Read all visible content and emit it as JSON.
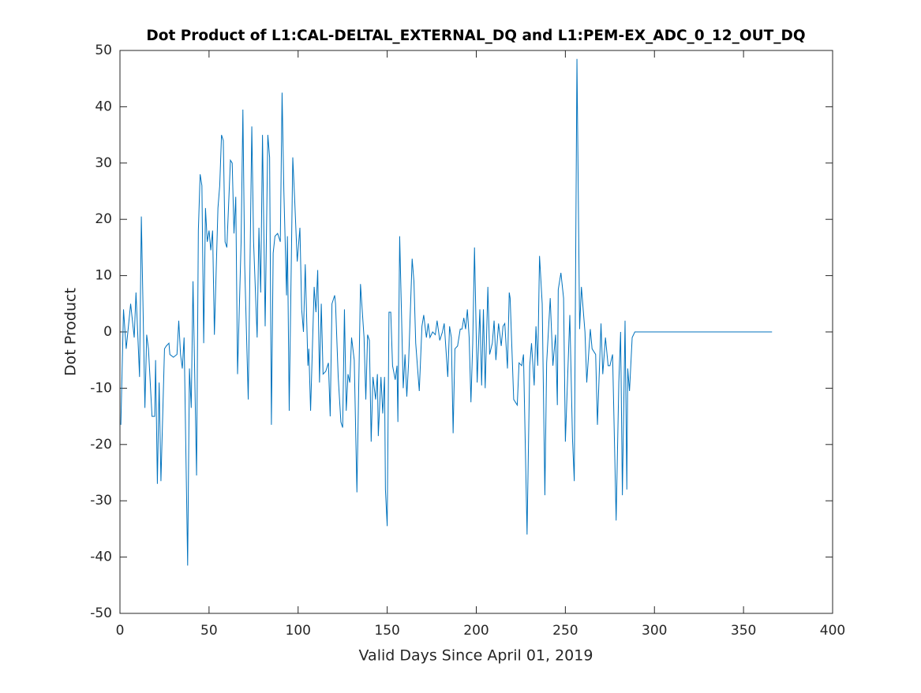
{
  "chart_data": {
    "type": "line",
    "title": "Dot Product of L1:CAL-DELTAL_EXTERNAL_DQ and L1:PEM-EX_ADC_0_12_OUT_DQ",
    "x_label": "Valid Days Since April 01, 2019",
    "y_label": "Dot Product",
    "xlim": [
      0,
      400
    ],
    "xticks": [
      0,
      50,
      100,
      150,
      200,
      250,
      300,
      350,
      400
    ],
    "ylim": [
      -50,
      50
    ],
    "yticks": [
      -50,
      -40,
      -30,
      -20,
      -10,
      0,
      10,
      20,
      30,
      40,
      50
    ],
    "grid": false,
    "series": [
      {
        "color": "#0072bd",
        "x": [
          0.5,
          2,
          3.5,
          6,
          8,
          9,
          11,
          12,
          14,
          15,
          16,
          18,
          19.5,
          20,
          21,
          22,
          23,
          25,
          26,
          27.5,
          28,
          30,
          32,
          33,
          34,
          35,
          36,
          38,
          39,
          40,
          41,
          43,
          44,
          45,
          46,
          47,
          48,
          49,
          50,
          51,
          52,
          53,
          55,
          56,
          57,
          58,
          59,
          60,
          62,
          63,
          64,
          65,
          66,
          68,
          69,
          70,
          72,
          74,
          75,
          77,
          78,
          79,
          80,
          81.5,
          83,
          84,
          85,
          86,
          87,
          88.5,
          90,
          91,
          92,
          93.5,
          94,
          95,
          97,
          98,
          99.5,
          101,
          102,
          103,
          104,
          105.5,
          106,
          107,
          109,
          110,
          111,
          112,
          113,
          114,
          115.5,
          117,
          118,
          119,
          120.5,
          121,
          122.5,
          124,
          125,
          126,
          127,
          128,
          129,
          130,
          131.5,
          133,
          135,
          137,
          138,
          139,
          140,
          141,
          142,
          143.5,
          144.5,
          145,
          146.5,
          147.5,
          148.5,
          149,
          150,
          151,
          152,
          153,
          154.5,
          155.5,
          156,
          157,
          159,
          160,
          161,
          162,
          164,
          165,
          166,
          168,
          169.5,
          170.5,
          172,
          173,
          174,
          175.5,
          177,
          178,
          179.5,
          181,
          182,
          184,
          185,
          186,
          187,
          188,
          189.5,
          191,
          192,
          193,
          194,
          195,
          196,
          197,
          198,
          199,
          200.5,
          202,
          203,
          204,
          205,
          206.5,
          207.5,
          209,
          210,
          211,
          212.5,
          214,
          215,
          216,
          217.5,
          218.5,
          219,
          221,
          223,
          224,
          225.5,
          226.5,
          228.5,
          230,
          231,
          232.5,
          233.5,
          234.5,
          235.5,
          237,
          238.5,
          239.5,
          241.5,
          243,
          244.5,
          245.5,
          246,
          247.5,
          249,
          250,
          252.5,
          254,
          255,
          256.5,
          258,
          259,
          261,
          262,
          264,
          265,
          267,
          268,
          270,
          271,
          272.5,
          274,
          275,
          276.5,
          278.5,
          280,
          281,
          282,
          283.5,
          284.5,
          285,
          286,
          287.5,
          289,
          366
        ],
        "values": [
          -16.5,
          4,
          -3,
          5,
          -1,
          7,
          -8,
          20.5,
          -13.5,
          -0.5,
          -3,
          -15,
          -15,
          -5,
          -27,
          -9,
          -26.5,
          -3,
          -2.5,
          -2,
          -4,
          -4.5,
          -4,
          2,
          -4,
          -6.5,
          -1,
          -41.5,
          -6.5,
          -13.5,
          9,
          -25.5,
          18,
          28,
          26,
          -2,
          22,
          16,
          18,
          14.5,
          18,
          -0.5,
          22,
          26,
          35,
          34,
          16,
          15,
          30.5,
          30,
          17.5,
          24,
          -7.5,
          16,
          39.5,
          12,
          -12,
          36.5,
          16,
          -1,
          18.5,
          7,
          35,
          1,
          35,
          31,
          -16.5,
          14,
          17,
          17.5,
          16,
          42.5,
          25,
          6.5,
          17,
          -14,
          31,
          24,
          12.5,
          18.5,
          4,
          0,
          12,
          -6,
          -3,
          -14,
          8,
          3.5,
          11,
          -9,
          5,
          -7.5,
          -7,
          -5.5,
          -15,
          5,
          6.5,
          5,
          -8,
          -16,
          -17,
          4,
          -14,
          -7.5,
          -9,
          -1,
          -5,
          -28.5,
          8.5,
          -1,
          -12,
          -0.5,
          -1.5,
          -19.5,
          -8,
          -12,
          -7.5,
          -18.5,
          -8,
          -14.5,
          -8,
          -28,
          -34.5,
          3.5,
          3.5,
          -6,
          -8.5,
          -6,
          -16,
          17,
          -10,
          -4,
          -11.5,
          -5.5,
          13,
          9,
          -2,
          -10.5,
          1,
          3,
          -1,
          1.5,
          -1,
          0,
          -0.5,
          2,
          -1.5,
          0,
          1.5,
          -8,
          1,
          -1,
          -18,
          -3,
          -2.5,
          0.5,
          0.5,
          2.5,
          0.5,
          4,
          -1,
          -12.5,
          -2,
          15,
          -9,
          4,
          -9.5,
          4,
          -10,
          8,
          -4,
          -2,
          2,
          -5,
          1.5,
          -2.5,
          1,
          1.5,
          -6.5,
          7,
          6,
          -12,
          -13,
          -5.5,
          -6,
          -4,
          -36,
          -6,
          -2,
          -9.5,
          1,
          -6,
          13.5,
          5,
          -29,
          -5.5,
          6,
          -6,
          -0.5,
          -13,
          7.5,
          10.5,
          6,
          -19.5,
          3,
          -19,
          -26.5,
          48.5,
          0.5,
          8,
          0,
          -9,
          0.5,
          -3,
          -4,
          -16.5,
          1.5,
          -7.5,
          -1,
          -6,
          -6,
          -4,
          -33.5,
          -9,
          0,
          -29,
          2,
          -28,
          -6.5,
          -10.5,
          -1,
          0,
          0
        ]
      }
    ]
  }
}
